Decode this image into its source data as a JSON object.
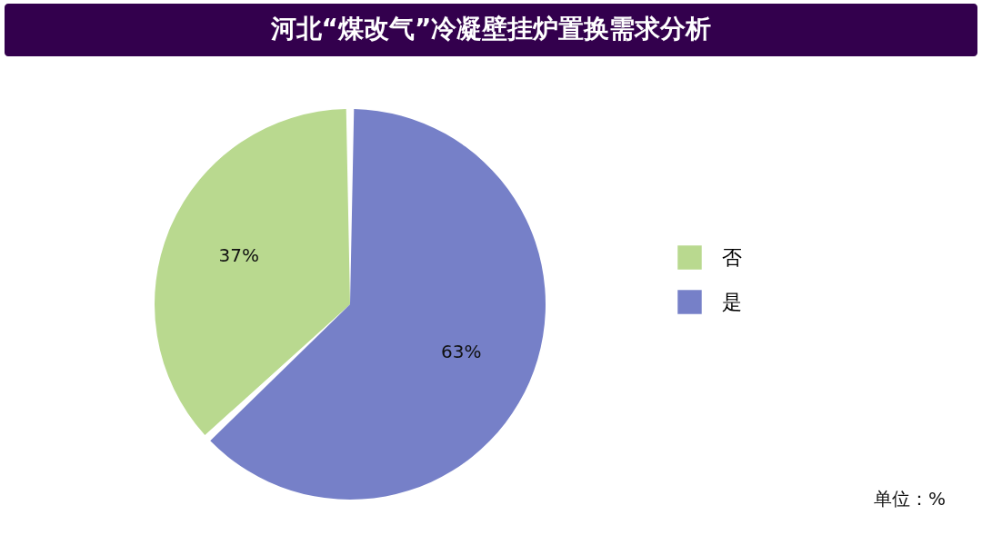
{
  "chart_data": {
    "type": "pie",
    "title": "河北“煤改气”冷凝壁挂炉置换需求分析",
    "categories": [
      "否",
      "是"
    ],
    "values": [
      37,
      63
    ],
    "colors": [
      "#b9d98f",
      "#7680c8"
    ],
    "value_labels": [
      "37%",
      "63%"
    ],
    "legend": "right",
    "annotations": [
      "单位：%"
    ]
  }
}
